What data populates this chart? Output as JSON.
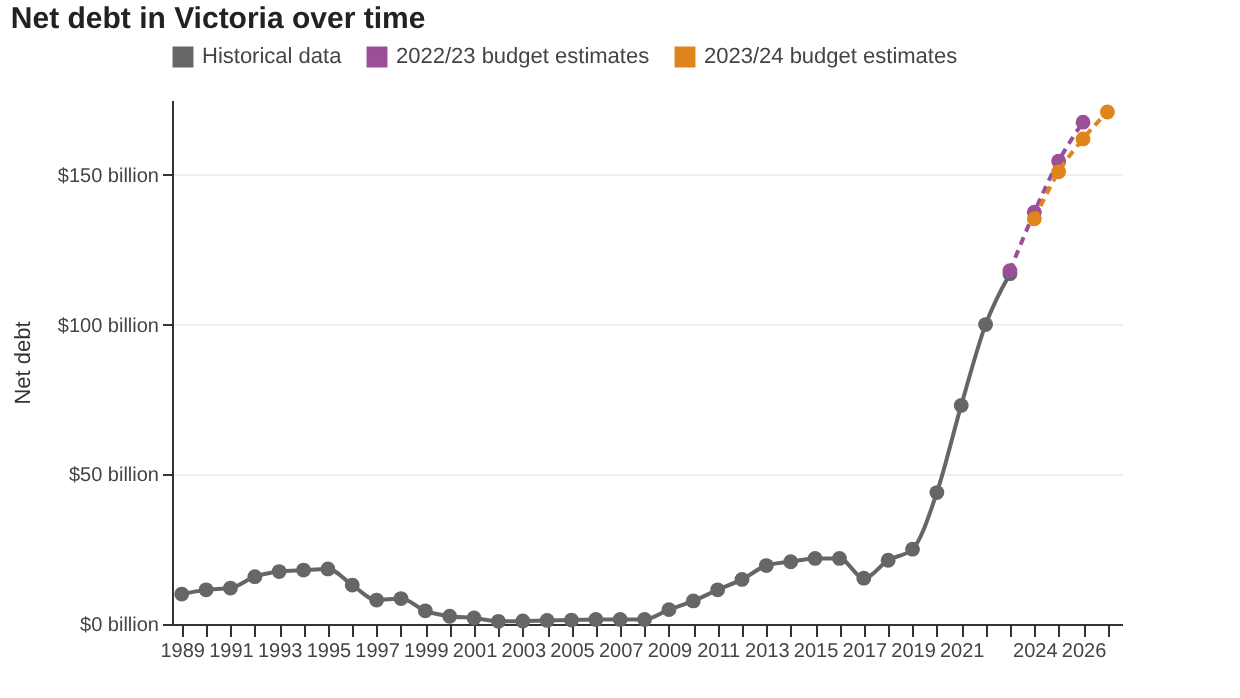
{
  "chart_data": {
    "type": "line",
    "title": "Net debt in Victoria over time",
    "ylabel": "Net debt",
    "xlim": [
      1988.6,
      2027.6
    ],
    "xticks": [
      1989,
      {
        "value": 1990,
        "label": null
      },
      1991,
      {
        "value": 1992,
        "label": null
      },
      1993,
      {
        "value": 1994,
        "label": null
      },
      1995,
      {
        "value": 1996,
        "label": null
      },
      1997,
      {
        "value": 1998,
        "label": null
      },
      1999,
      {
        "value": 2000,
        "label": null
      },
      2001,
      {
        "value": 2002,
        "label": null
      },
      2003,
      {
        "value": 2004,
        "label": null
      },
      2005,
      {
        "value": 2006,
        "label": null
      },
      2007,
      {
        "value": 2008,
        "label": null
      },
      2009,
      {
        "value": 2010,
        "label": null
      },
      2011,
      {
        "value": 2012,
        "label": null
      },
      2013,
      {
        "value": 2014,
        "label": null
      },
      2015,
      {
        "value": 2016,
        "label": null
      },
      2017,
      {
        "value": 2018,
        "label": null
      },
      2019,
      {
        "value": 2020,
        "label": null
      },
      2021,
      {
        "value": 2022,
        "label": null
      },
      {
        "value": 2023,
        "label": null
      },
      2024,
      {
        "value": 2025,
        "label": null
      },
      2026,
      {
        "value": 2027,
        "label": null
      }
    ],
    "ylim": [
      0,
      175
    ],
    "yticks": [
      {
        "value": 0,
        "label": "$0 billion"
      },
      {
        "value": 50,
        "label": "$50 billion"
      },
      {
        "value": 100,
        "label": "$100 billion"
      },
      {
        "value": 150,
        "label": "$150 billion"
      }
    ],
    "grid": "y",
    "legend": "top left",
    "marker": "circle",
    "series": [
      {
        "name": "Historical data",
        "color": "#666666",
        "line_style": "solid",
        "x": [
          1989,
          1990,
          1991,
          1992,
          1993,
          1994,
          1995,
          1996,
          1997,
          1998,
          1999,
          2000,
          2001,
          2002,
          2003,
          2004,
          2005,
          2006,
          2007,
          2008,
          2009,
          2010,
          2011,
          2012,
          2013,
          2014,
          2015,
          2016,
          2017,
          2018,
          2019,
          2020,
          2021,
          2022,
          2023
        ],
        "values": [
          10,
          11.4,
          12,
          15.8,
          17.5,
          18,
          18.4,
          13,
          8,
          8.5,
          4.4,
          2.6,
          2,
          0.9,
          1,
          1.2,
          1.3,
          1.5,
          1.5,
          1.5,
          4.8,
          7.7,
          11.4,
          14.9,
          19.5,
          20.8,
          21.9,
          21.9,
          15.3,
          21.3,
          25,
          43.9,
          73,
          100,
          117
        ]
      },
      {
        "name": "2022/23 budget estimates",
        "color": "#9b4f96",
        "line_style": "dashed",
        "x": [
          2023,
          2024,
          2025,
          2026
        ],
        "values": [
          118,
          137.5,
          154.6,
          167.6
        ]
      },
      {
        "name": "2023/24 budget estimates",
        "color": "#e0851b",
        "line_style": "dashed",
        "x": [
          2024,
          2025,
          2026,
          2027
        ],
        "values": [
          135.3,
          151,
          162,
          171
        ]
      }
    ]
  }
}
